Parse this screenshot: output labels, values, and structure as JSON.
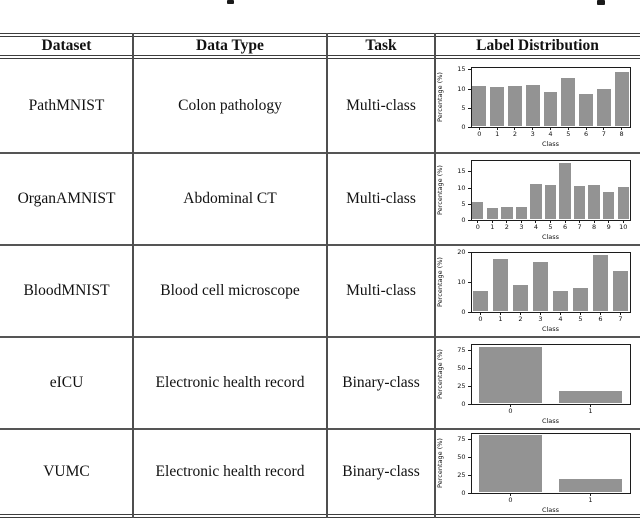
{
  "table": {
    "headers": [
      "Dataset",
      "Data Type",
      "Task",
      "Label Distribution"
    ],
    "rows": [
      {
        "dataset": "PathMNIST",
        "data_type": "Colon pathology",
        "task": "Multi-class"
      },
      {
        "dataset": "OrganAMNIST",
        "data_type": "Abdominal CT",
        "task": "Multi-class"
      },
      {
        "dataset": "BloodMNIST",
        "data_type": "Blood cell microscope",
        "task": "Multi-class"
      },
      {
        "dataset": "eICU",
        "data_type": "Electronic health record",
        "task": "Binary-class"
      },
      {
        "dataset": "VUMC",
        "data_type": "Electronic health record",
        "task": "Binary-class"
      }
    ]
  },
  "chart_data": [
    {
      "type": "bar",
      "dataset": "PathMNIST",
      "categories": [
        "0",
        "1",
        "2",
        "3",
        "4",
        "5",
        "6",
        "7",
        "8"
      ],
      "values": [
        10.9,
        10.6,
        10.9,
        11.2,
        9.3,
        13.0,
        8.8,
        10.1,
        14.4
      ],
      "title": "",
      "xlabel": "Class",
      "ylabel": "Percentage (%)",
      "yticks": [
        0,
        5,
        10,
        15
      ],
      "ylim": [
        0,
        15.9
      ],
      "grid": false,
      "legend": "none"
    },
    {
      "type": "bar",
      "dataset": "OrganAMNIST",
      "categories": [
        "0",
        "1",
        "2",
        "3",
        "4",
        "5",
        "6",
        "7",
        "8",
        "9",
        "10"
      ],
      "values": [
        5.6,
        4.0,
        4.1,
        4.3,
        11.4,
        11.0,
        17.8,
        10.7,
        11.0,
        8.8,
        10.3
      ],
      "title": "",
      "xlabel": "Class",
      "ylabel": "Percentage (%)",
      "yticks": [
        0,
        5,
        10,
        15
      ],
      "ylim": [
        0,
        18.8
      ],
      "grid": false,
      "legend": "none"
    },
    {
      "type": "bar",
      "dataset": "BloodMNIST",
      "categories": [
        "0",
        "1",
        "2",
        "3",
        "4",
        "5",
        "6",
        "7"
      ],
      "values": [
        7.2,
        18.1,
        9.1,
        17.0,
        7.2,
        8.4,
        19.4,
        13.8
      ],
      "title": "",
      "xlabel": "Class",
      "ylabel": "Percentage (%)",
      "yticks": [
        0,
        10,
        20
      ],
      "ylim": [
        0,
        20.5
      ],
      "grid": false,
      "legend": "none"
    },
    {
      "type": "bar",
      "dataset": "eICU",
      "categories": [
        "0",
        "1"
      ],
      "values": [
        81.0,
        19.0
      ],
      "title": "",
      "xlabel": "Class",
      "ylabel": "Percentage (%)",
      "yticks": [
        0,
        25,
        50,
        75
      ],
      "ylim": [
        0,
        85.5
      ],
      "grid": false,
      "legend": "none"
    },
    {
      "type": "bar",
      "dataset": "VUMC",
      "categories": [
        "0",
        "1"
      ],
      "values": [
        80.0,
        20.0
      ],
      "title": "",
      "xlabel": "Class",
      "ylabel": "Percentage (%)",
      "yticks": [
        0,
        25,
        50,
        75
      ],
      "ylim": [
        0,
        84.0
      ],
      "grid": false,
      "legend": "none"
    }
  ],
  "colors": {
    "bar_fill": "#939393",
    "axis_line": "#1c1c1c",
    "table_rule": "#4f4f4f",
    "text": "#111111"
  }
}
